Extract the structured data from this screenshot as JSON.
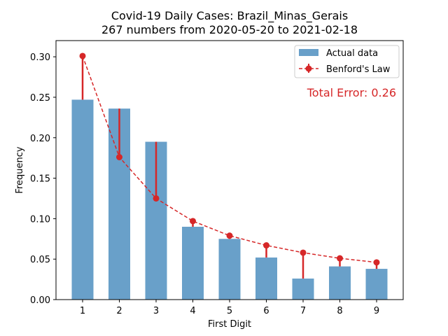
{
  "chart_data": {
    "type": "bar",
    "title": "Covid-19 Daily Cases: Brazil_Minas_Gerais",
    "subtitle": "267 numbers from 2020-05-20 to 2021-02-18",
    "xlabel": "First Digit",
    "ylabel": "Frequency",
    "categories": [
      "1",
      "2",
      "3",
      "4",
      "5",
      "6",
      "7",
      "8",
      "9"
    ],
    "ylim": [
      0,
      0.32
    ],
    "yticks": [
      "0.00",
      "0.05",
      "0.10",
      "0.15",
      "0.20",
      "0.25",
      "0.30"
    ],
    "series": [
      {
        "name": "Actual data",
        "type": "bar",
        "color": "#4f8fc0",
        "values": [
          0.247,
          0.236,
          0.195,
          0.09,
          0.075,
          0.052,
          0.026,
          0.041,
          0.038
        ]
      },
      {
        "name": "Benford's Law",
        "type": "line",
        "style": "dashed",
        "color": "#d62728",
        "values": [
          0.301,
          0.176,
          0.125,
          0.097,
          0.079,
          0.067,
          0.058,
          0.051,
          0.046
        ]
      }
    ],
    "annotation": "Total Error: 0.26",
    "legend_position": "top-right",
    "grid": false
  }
}
